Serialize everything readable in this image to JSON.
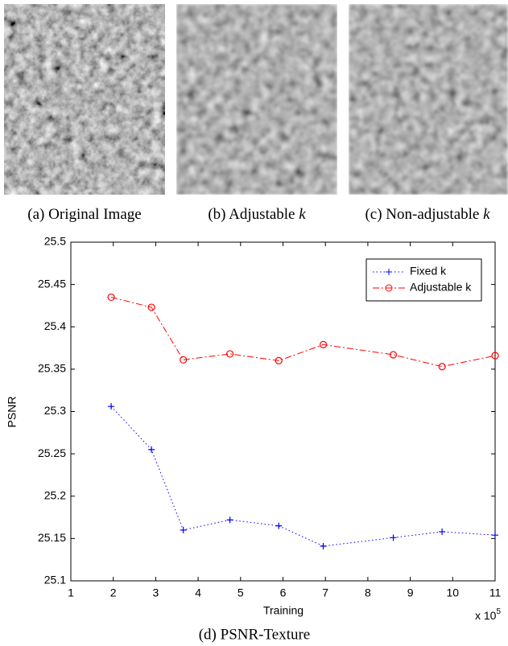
{
  "panels": [
    {
      "label": "(a)",
      "caption": "Original Image"
    },
    {
      "label": "(b)",
      "caption": "Adjustable",
      "variable": "k"
    },
    {
      "label": "(c)",
      "caption": "Non-adjustable",
      "variable": "k"
    }
  ],
  "chart_data": {
    "type": "line",
    "caption": "(d) PSNR-Texture",
    "xlabel": "Training",
    "ylabel": "PSNR",
    "x_multiplier": {
      "base": "x 10",
      "exponent": "5"
    },
    "x": [
      1.95,
      2.9,
      3.65,
      4.75,
      5.9,
      6.95,
      8.6,
      9.75,
      11
    ],
    "series": [
      {
        "name": "Fixed k",
        "color": "#0000ff",
        "marker": "+",
        "dash": "1.5 3",
        "values": [
          25.306,
          25.255,
          25.16,
          25.172,
          25.165,
          25.141,
          25.151,
          25.158,
          25.154
        ]
      },
      {
        "name": "Adjustable k",
        "color": "#ff0000",
        "marker": "o",
        "dash": "8 3 2 3",
        "values": [
          25.435,
          25.423,
          25.361,
          25.368,
          25.36,
          25.379,
          25.367,
          25.353,
          25.366
        ]
      }
    ],
    "xlim": [
      1,
      11
    ],
    "xticks": [
      1,
      2,
      3,
      4,
      5,
      6,
      7,
      8,
      9,
      10,
      11
    ],
    "ylim": [
      25.1,
      25.5
    ],
    "yticks": [
      25.1,
      25.15,
      25.2,
      25.25,
      25.3,
      25.35,
      25.4,
      25.45,
      25.5
    ],
    "legend": "upper-right",
    "grid": false
  }
}
